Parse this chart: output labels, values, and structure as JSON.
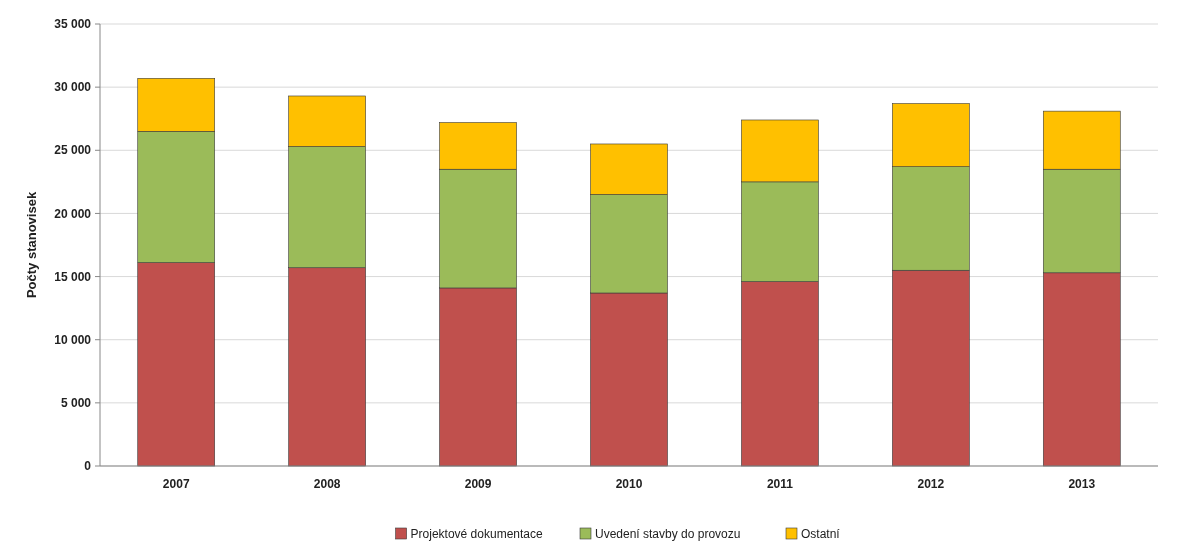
{
  "chart_data": {
    "type": "bar",
    "stacked": true,
    "ylabel": "Počty stanovisek",
    "categories": [
      "2007",
      "2008",
      "2009",
      "2010",
      "2011",
      "2012",
      "2013"
    ],
    "series": [
      {
        "name": "Projektové dokumentace",
        "color": "#c0504d",
        "values": [
          16100,
          15700,
          14100,
          13700,
          14600,
          15500,
          15300
        ]
      },
      {
        "name": "Uvedení stavby do provozu",
        "color": "#9bbb59",
        "values": [
          10400,
          9600,
          9400,
          7800,
          7900,
          8200,
          8200
        ]
      },
      {
        "name": "Ostatní",
        "color": "#ffc000",
        "values": [
          4200,
          4000,
          3700,
          4000,
          4900,
          5000,
          4600
        ]
      }
    ],
    "ylim": [
      0,
      35000
    ],
    "yticks": [
      0,
      {
        "value": 5000,
        "label": "5 000"
      },
      {
        "value": 10000,
        "label": "10 000"
      },
      {
        "value": 15000,
        "label": "15 000"
      },
      {
        "value": 20000,
        "label": "20 000"
      },
      {
        "value": 25000,
        "label": "25 000"
      },
      {
        "value": 30000,
        "label": "30 000"
      },
      {
        "value": 35000,
        "label": "35 000"
      }
    ],
    "grid": "y",
    "legend": "bottom"
  }
}
